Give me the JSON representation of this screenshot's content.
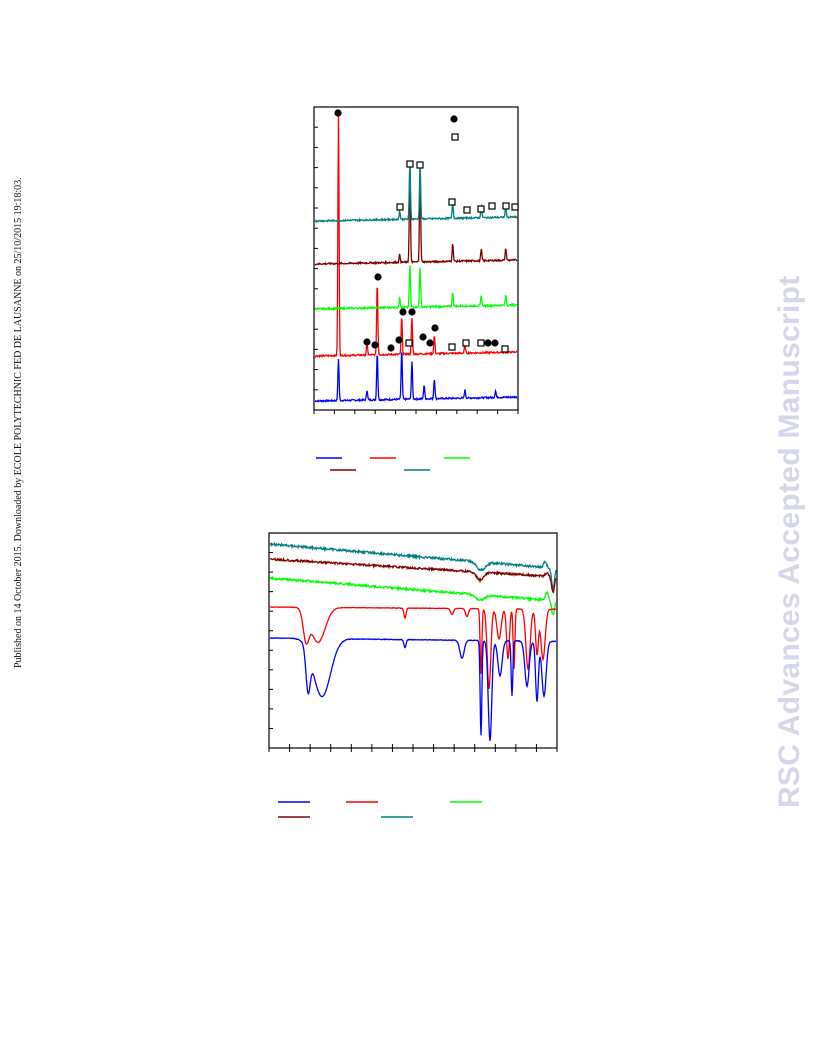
{
  "page": {
    "publication_note": "Published on 14 October 2015. Downloaded by ECOLE POLYTECHNIC FED DE LAUSANNE on 25/10/2015 19:18:03.",
    "watermark": "RSC Advances Accepted Manuscript"
  },
  "colors": {
    "blue": "#0000ff",
    "red": "#ff0000",
    "green": "#00ff00",
    "darkred": "#800000",
    "teal": "#008080",
    "watermark": "#d6d6ea"
  },
  "chart_data": [
    {
      "type": "line",
      "plot": "xrd",
      "title": "",
      "xlabel": "",
      "ylabel": "",
      "grid": false,
      "legend": "below plot",
      "markers": [
        "filled-circle",
        "open-square"
      ],
      "series": [
        {
          "color": "blue",
          "offset": 0,
          "peaks": [
            [
              0.12,
              42
            ],
            [
              0.26,
              10
            ],
            [
              0.31,
              48
            ],
            [
              0.43,
              50
            ],
            [
              0.48,
              38
            ],
            [
              0.54,
              14
            ],
            [
              0.59,
              20
            ],
            [
              0.74,
              8
            ],
            [
              0.89,
              7
            ]
          ]
        },
        {
          "color": "red",
          "offset": 45,
          "peaks": [
            [
              0.12,
              240
            ],
            [
              0.26,
              12
            ],
            [
              0.31,
              73
            ],
            [
              0.43,
              38
            ],
            [
              0.48,
              36
            ],
            [
              0.59,
              18
            ],
            [
              0.74,
              8
            ]
          ]
        },
        {
          "color": "green",
          "offset": 92,
          "peaks": [
            [
              0.42,
              10
            ],
            [
              0.47,
              42
            ],
            [
              0.52,
              40
            ],
            [
              0.68,
              14
            ],
            [
              0.82,
              10
            ],
            [
              0.94,
              10
            ]
          ]
        },
        {
          "color": "darkred",
          "offset": 137,
          "peaks": [
            [
              0.42,
              8
            ],
            [
              0.47,
              98
            ],
            [
              0.52,
              95
            ],
            [
              0.68,
              18
            ],
            [
              0.82,
              12
            ],
            [
              0.94,
              12
            ]
          ]
        },
        {
          "color": "teal",
          "offset": 180,
          "peaks": [
            [
              0.42,
              8
            ],
            [
              0.47,
              58
            ],
            [
              0.52,
              54
            ],
            [
              0.68,
              16
            ],
            [
              0.82,
              12
            ],
            [
              0.94,
              12
            ]
          ]
        }
      ],
      "legend_entries": [
        {
          "color": "blue",
          "label": ""
        },
        {
          "color": "red",
          "label": ""
        },
        {
          "color": "green",
          "label": ""
        },
        {
          "color": "darkred",
          "label": ""
        },
        {
          "color": "teal",
          "label": ""
        }
      ]
    },
    {
      "type": "line",
      "plot": "ftir",
      "title": "",
      "xlabel": "",
      "ylabel": "",
      "grid": false,
      "legend": "below plot",
      "series": [
        {
          "color": "teal"
        },
        {
          "color": "darkred"
        },
        {
          "color": "green"
        },
        {
          "color": "red"
        },
        {
          "color": "blue"
        }
      ],
      "legend_entries": [
        {
          "color": "blue",
          "label": ""
        },
        {
          "color": "red",
          "label": ""
        },
        {
          "color": "green",
          "label": ""
        },
        {
          "color": "darkred",
          "label": ""
        },
        {
          "color": "teal",
          "label": ""
        }
      ]
    }
  ]
}
